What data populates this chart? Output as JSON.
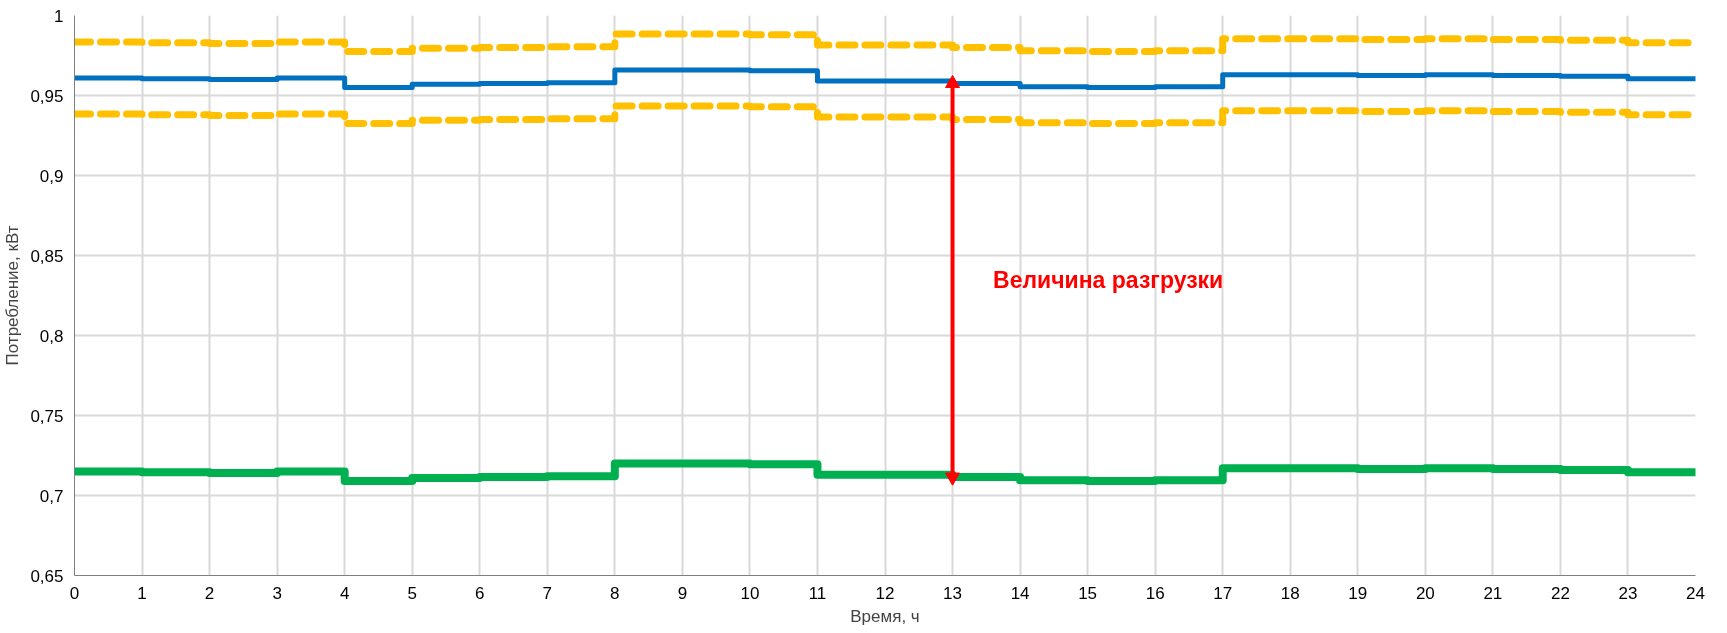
{
  "chart_data": {
    "type": "step",
    "xlabel": "Время, ч",
    "ylabel": "Потребление, кВт",
    "x": [
      0,
      1,
      2,
      3,
      4,
      5,
      6,
      7,
      8,
      9,
      10,
      11,
      12,
      13,
      14,
      15,
      16,
      17,
      18,
      19,
      20,
      21,
      22,
      23,
      24
    ],
    "series": [
      {
        "color": "#ffc000",
        "line_style": "dashed",
        "values": [
          0.9835,
          0.983,
          0.9825,
          0.9835,
          0.9775,
          0.9795,
          0.98,
          0.9805,
          0.9885,
          0.9885,
          0.988,
          0.9815,
          0.9815,
          0.98,
          0.978,
          0.9775,
          0.978,
          0.9855,
          0.9855,
          0.985,
          0.9855,
          0.985,
          0.9845,
          0.983,
          0.983
        ]
      },
      {
        "color": "#0070c0",
        "line_style": "solid",
        "values": [
          0.961,
          0.9605,
          0.96,
          0.961,
          0.955,
          0.957,
          0.9575,
          0.958,
          0.966,
          0.966,
          0.9655,
          0.959,
          0.959,
          0.9575,
          0.9555,
          0.955,
          0.9555,
          0.963,
          0.963,
          0.9625,
          0.963,
          0.9625,
          0.962,
          0.9605,
          0.9605
        ]
      },
      {
        "color": "#ffc000",
        "line_style": "dashed",
        "values": [
          0.9385,
          0.938,
          0.9375,
          0.9385,
          0.9325,
          0.9345,
          0.935,
          0.9355,
          0.9435,
          0.9435,
          0.943,
          0.9365,
          0.9365,
          0.935,
          0.933,
          0.9325,
          0.933,
          0.9405,
          0.9405,
          0.94,
          0.9405,
          0.94,
          0.9395,
          0.938,
          0.938
        ]
      },
      {
        "color": "#00b050",
        "line_style": "solid",
        "values": [
          0.715,
          0.7145,
          0.714,
          0.715,
          0.709,
          0.711,
          0.7115,
          0.712,
          0.72,
          0.72,
          0.7195,
          0.713,
          0.713,
          0.7115,
          0.7095,
          0.709,
          0.7095,
          0.717,
          0.717,
          0.7165,
          0.717,
          0.7165,
          0.716,
          0.7145,
          0.7145
        ]
      },
      {
        "type": "line",
        "color": "#ff0000",
        "line_style": "solid",
        "marker": "triangle",
        "x": [
          13,
          13
        ],
        "values": [
          0.7115,
          0.9575
        ]
      }
    ],
    "annotations": [
      "Величина разгрузки"
    ],
    "xlim": [
      0,
      24
    ],
    "xticks": [
      0,
      1,
      2,
      3,
      4,
      5,
      6,
      7,
      8,
      9,
      10,
      11,
      12,
      13,
      14,
      15,
      16,
      17,
      18,
      19,
      20,
      21,
      22,
      23,
      24
    ],
    "ylim": [
      0.65,
      1
    ],
    "yticks": [
      {
        "value": 0.65,
        "label": "0,65"
      },
      {
        "value": 0.7,
        "label": "0,7"
      },
      {
        "value": 0.75,
        "label": "0,75"
      },
      {
        "value": 0.8,
        "label": "0,8"
      },
      {
        "value": 0.85,
        "label": "0,85"
      },
      {
        "value": 0.9,
        "label": "0,9"
      },
      {
        "value": 0.95,
        "label": "0,95"
      },
      {
        "value": 1,
        "label": "1"
      }
    ],
    "grid": true
  }
}
